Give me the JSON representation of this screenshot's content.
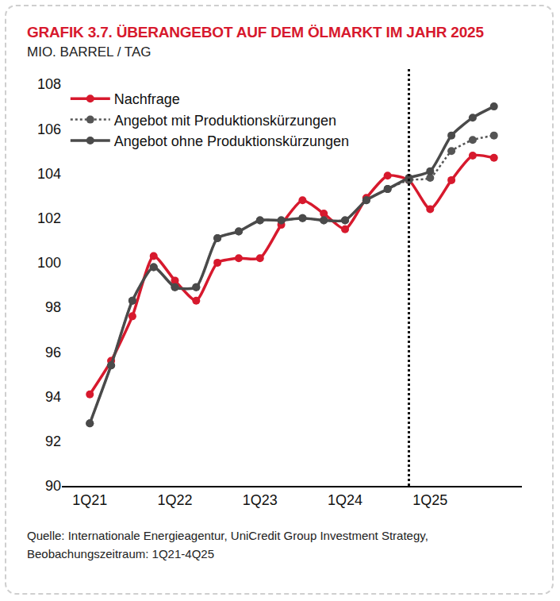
{
  "chart_data": {
    "type": "line",
    "title": "GRAFIK 3.7. ÜBERANGEBOT AUF DEM ÖLMARKT IM JAHR 2025",
    "subtitle": "MIO. BARREL / TAG",
    "source": "Quelle: Internationale Energieagentur, UniCredit Group Investment Strategy, Beobachungszeitraum: 1Q21-4Q25",
    "categories": [
      "1Q21",
      null,
      null,
      null,
      "1Q22",
      null,
      null,
      null,
      "1Q23",
      null,
      null,
      null,
      "1Q24",
      null,
      null,
      null,
      "1Q25",
      null,
      null,
      null
    ],
    "series": [
      {
        "name": "Nachfrage",
        "color": "#d7192d",
        "line_style": "solid",
        "marker": "circle",
        "values": [
          94.1,
          95.6,
          97.6,
          100.3,
          99.2,
          98.3,
          100.0,
          100.2,
          100.2,
          101.7,
          102.8,
          102.2,
          101.5,
          102.9,
          103.9,
          103.7,
          102.4,
          103.7,
          104.8,
          104.7
        ]
      },
      {
        "name": "Angebot mit Produktionskürzungen",
        "color": "#555555",
        "line_style": "dotted",
        "marker": "circle",
        "values": [
          92.8,
          95.4,
          98.3,
          99.8,
          98.9,
          98.9,
          101.1,
          101.4,
          101.9,
          101.9,
          102.0,
          101.9,
          101.9,
          102.8,
          103.3,
          103.7,
          103.8,
          105.0,
          105.5,
          105.7
        ]
      },
      {
        "name": "Angebot ohne Produktionskürzungen",
        "color": "#4a4a4a",
        "line_style": "solid",
        "marker": "circle",
        "values": [
          92.8,
          95.4,
          98.3,
          99.8,
          98.9,
          98.9,
          101.1,
          101.4,
          101.9,
          101.9,
          102.0,
          101.9,
          101.9,
          102.8,
          103.3,
          103.8,
          104.1,
          105.7,
          106.5,
          107.0
        ]
      }
    ],
    "ylim": [
      90,
      108
    ],
    "yticks": [
      90,
      92,
      94,
      96,
      98,
      100,
      102,
      104,
      106,
      108
    ],
    "grid": false,
    "legend": "top left",
    "vertical_line_at": 15
  }
}
